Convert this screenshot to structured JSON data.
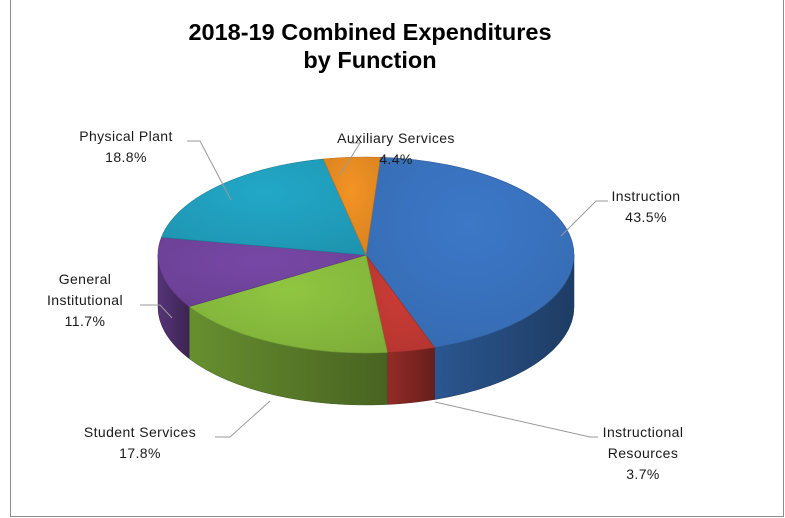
{
  "chart_data": {
    "type": "pie",
    "title": "2018-19 Combined Expenditures",
    "subtitle": "by Function",
    "slices": [
      {
        "label": "Instruction",
        "value": 43.5,
        "pct_text": "43.5%",
        "color": "#3c78c8"
      },
      {
        "label": "Instructional Resources",
        "label_lines": [
          "Instructional",
          "Resources"
        ],
        "value": 3.7,
        "pct_text": "3.7%",
        "color": "#cd3c36"
      },
      {
        "label": "Student Services",
        "value": 17.8,
        "pct_text": "17.8%",
        "color": "#8fc641"
      },
      {
        "label": "General Institutional",
        "label_lines": [
          "General",
          "Institutional"
        ],
        "value": 11.7,
        "pct_text": "11.7%",
        "color": "#7748a6"
      },
      {
        "label": "Physical Plant",
        "value": 18.8,
        "pct_text": "18.8%",
        "color": "#22a8c8"
      },
      {
        "label": "Auxiliary Services",
        "value": 4.4,
        "pct_text": "4.4%",
        "color": "#f39324"
      }
    ],
    "legend": "none",
    "data_labels": "outside-with-leader-lines"
  }
}
